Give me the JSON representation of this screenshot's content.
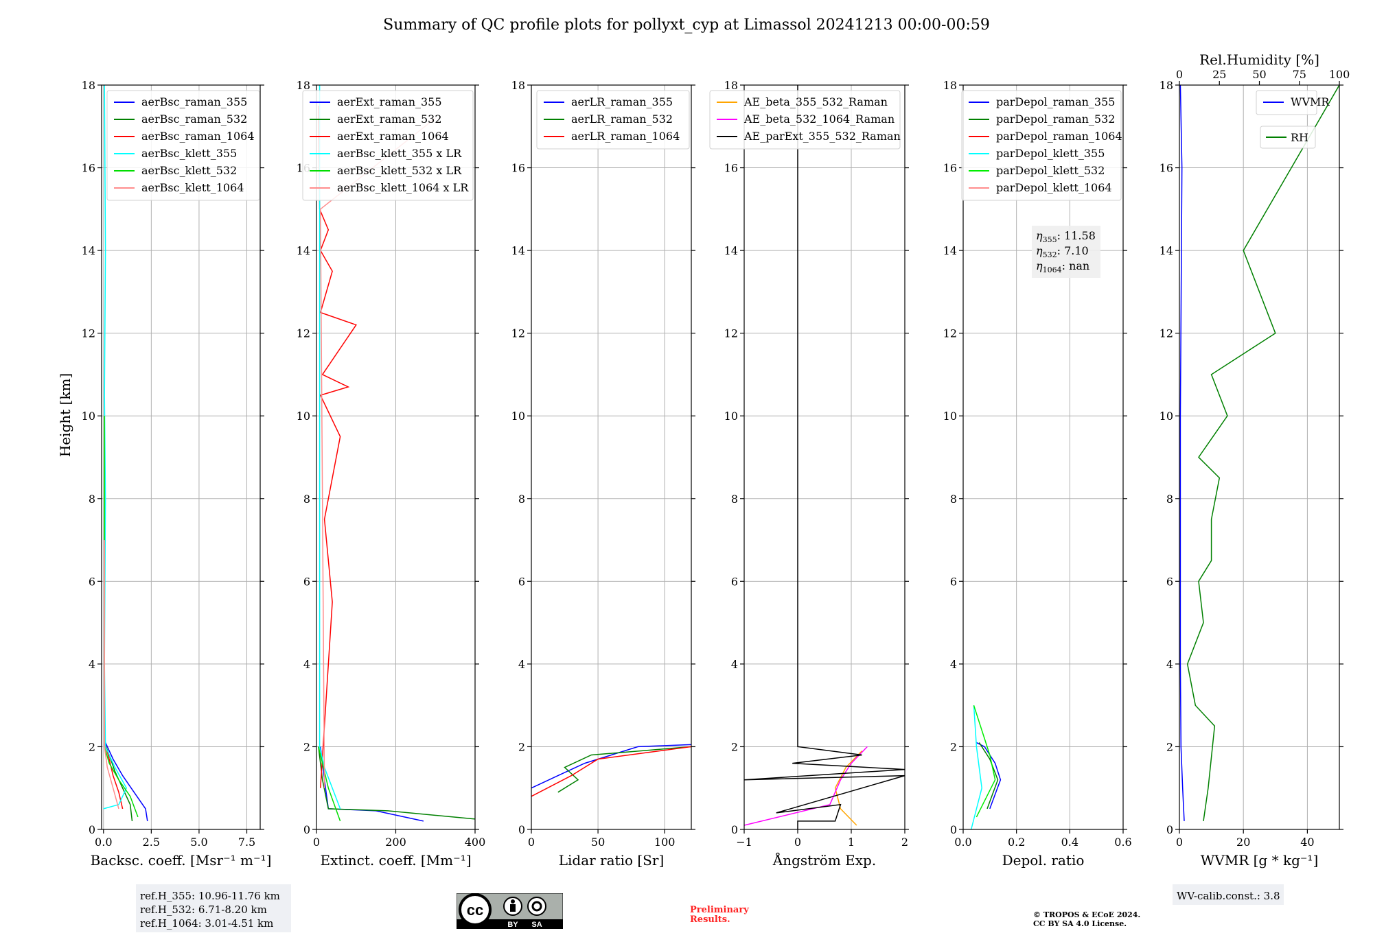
{
  "figure": {
    "title": "Summary of QC profile plots for pollyxt_cyp at Limassol 20241213 00:00-00:59",
    "ylabel": "Height [km]"
  },
  "chart_data": [
    {
      "type": "line",
      "id": "backscatter",
      "xlabel": "Backsc. coeff. [Msr⁻¹ m⁻¹]",
      "xlim": [
        -0.1,
        8.2
      ],
      "xticks": [
        "0.0",
        "2.5",
        "5.0",
        "7.5"
      ],
      "xtick_values": [
        0,
        2.5,
        5,
        7.5
      ],
      "ylim": [
        0,
        18
      ],
      "yticks": [
        "0",
        "2",
        "4",
        "6",
        "8",
        "10",
        "12",
        "14",
        "16",
        "18"
      ],
      "legend": [
        "aerBsc_raman_355",
        "aerBsc_raman_532",
        "aerBsc_raman_1064",
        "aerBsc_klett_355",
        "aerBsc_klett_532",
        "aerBsc_klett_1064"
      ],
      "series": [
        {
          "name": "aerBsc_raman_355",
          "color": "#0000ff",
          "x": [
            2.3,
            2.2,
            1.6,
            1.0,
            0.5,
            0.1
          ],
          "y": [
            0.2,
            0.5,
            0.9,
            1.3,
            1.7,
            2.1
          ]
        },
        {
          "name": "aerBsc_raman_532",
          "color": "#008000",
          "x": [
            1.5,
            1.4,
            1.0,
            0.6,
            0.3,
            0.05
          ],
          "y": [
            0.2,
            0.6,
            1.0,
            1.4,
            1.8,
            2.1
          ]
        },
        {
          "name": "aerBsc_raman_1064",
          "color": "#ff0000",
          "x": [
            1.0,
            0.8,
            0.5,
            0.3,
            0.1
          ],
          "y": [
            0.5,
            0.9,
            1.3,
            1.7,
            2.05
          ]
        },
        {
          "name": "aerBsc_klett_355",
          "color": "#00ffff",
          "x": [
            0.0,
            0.8,
            1.2,
            0.6,
            0.1,
            0.05,
            0.1,
            0.05,
            0.1,
            0.05
          ],
          "y": [
            0.5,
            0.6,
            1.0,
            1.5,
            2.0,
            4.0,
            8.0,
            10.5,
            14.0,
            18.0
          ]
        },
        {
          "name": "aerBsc_klett_532",
          "color": "#00dd00",
          "x": [
            1.8,
            1.4,
            0.8,
            0.3,
            0.05,
            0.05
          ],
          "y": [
            0.3,
            0.8,
            1.2,
            1.6,
            2.0,
            10.0
          ]
        },
        {
          "name": "aerBsc_klett_1064",
          "color": "#ff8c8c",
          "x": [
            0.8,
            0.5,
            0.2,
            0.05,
            0.05
          ],
          "y": [
            0.5,
            1.0,
            1.5,
            2.0,
            7.0
          ]
        }
      ],
      "annotation": [
        "ref.H_355: 10.96-11.76 km",
        "ref.H_532: 6.71-8.20 km",
        "ref.H_1064: 3.01-4.51 km"
      ]
    },
    {
      "type": "line",
      "id": "extinction",
      "xlabel": "Extinct. coeff. [Mm⁻¹]",
      "xlim": [
        0,
        400
      ],
      "xticks": [
        "0",
        "200",
        "400"
      ],
      "xtick_values": [
        0,
        200,
        400
      ],
      "ylim": [
        0,
        18
      ],
      "legend": [
        "aerExt_raman_355",
        "aerExt_raman_532",
        "aerExt_raman_1064",
        "aerBsc_klett_355 x LR",
        "aerBsc_klett_532 x LR",
        "aerBsc_klett_1064 x LR"
      ],
      "series": [
        {
          "name": "aerExt_raman_355",
          "color": "#0000ff",
          "x": [
            270,
            150,
            30,
            20,
            10
          ],
          "y": [
            0.2,
            0.45,
            0.5,
            1.2,
            2.0
          ]
        },
        {
          "name": "aerExt_raman_532",
          "color": "#008000",
          "x": [
            400,
            180,
            30,
            15,
            5
          ],
          "y": [
            0.25,
            0.45,
            0.5,
            1.2,
            2.0
          ]
        },
        {
          "name": "aerExt_raman_1064",
          "color": "#ff0000",
          "x": [
            10,
            40,
            20,
            60,
            10,
            80,
            15,
            100,
            10,
            40,
            10,
            30,
            8,
            5
          ],
          "y": [
            1.0,
            5.5,
            7.5,
            9.5,
            10.5,
            10.7,
            11.0,
            12.2,
            12.5,
            13.5,
            14.0,
            14.5,
            15.0,
            17.5
          ]
        },
        {
          "name": "aerBsc_klett_355 x LR",
          "color": "#00ffff",
          "x": [
            60,
            20,
            8,
            8
          ],
          "y": [
            0.5,
            1.5,
            2.0,
            18.0
          ]
        },
        {
          "name": "aerBsc_klett_532 x LR",
          "color": "#00dd00",
          "x": [
            60,
            30,
            5
          ],
          "y": [
            0.2,
            1.0,
            2.0
          ]
        },
        {
          "name": "aerBsc_klett_1064 x LR",
          "color": "#ff8c8c",
          "x": [
            20,
            10,
            300
          ],
          "y": [
            1.0,
            15.0,
            17.2
          ]
        }
      ]
    },
    {
      "type": "line",
      "id": "lidar_ratio",
      "xlabel": "Lidar ratio [Sr]",
      "xlim": [
        0,
        120
      ],
      "xticks": [
        "0",
        "50",
        "100"
      ],
      "xtick_values": [
        0,
        50,
        100
      ],
      "ylim": [
        0,
        18
      ],
      "legend": [
        "aerLR_raman_355",
        "aerLR_raman_532",
        "aerLR_raman_1064"
      ],
      "series": [
        {
          "name": "aerLR_raman_355",
          "color": "#0000ff",
          "x": [
            0,
            20,
            40,
            60,
            80,
            120
          ],
          "y": [
            1.0,
            1.3,
            1.6,
            1.8,
            2.0,
            2.05
          ]
        },
        {
          "name": "aerLR_raman_532",
          "color": "#008000",
          "x": [
            20,
            35,
            25,
            45,
            120
          ],
          "y": [
            0.9,
            1.2,
            1.5,
            1.8,
            2.0
          ]
        },
        {
          "name": "aerLR_raman_1064",
          "color": "#ff0000",
          "x": [
            0,
            30,
            50,
            120
          ],
          "y": [
            0.8,
            1.3,
            1.7,
            2.0
          ]
        }
      ]
    },
    {
      "type": "line",
      "id": "angstrom",
      "xlabel": "Ångström Exp.",
      "xlim": [
        -1,
        2
      ],
      "xticks": [
        "−1",
        "0",
        "1",
        "2"
      ],
      "xtick_values": [
        -1,
        0,
        1,
        2
      ],
      "ylim": [
        0,
        18
      ],
      "legend": [
        "AE_beta_355_532_Raman",
        "AE_beta_532_1064_Raman",
        "AE_parExt_355_532_Raman"
      ],
      "series": [
        {
          "name": "AE_beta_355_532_Raman",
          "color": "#ffa500",
          "x": [
            1.1,
            0.8,
            0.7,
            0.9,
            1.2
          ],
          "y": [
            0.1,
            0.5,
            1.0,
            1.5,
            1.9
          ]
        },
        {
          "name": "AE_beta_532_1064_Raman",
          "color": "#ff00ff",
          "x": [
            -1,
            0.6,
            0.8,
            1.0,
            1.3
          ],
          "y": [
            0.1,
            0.6,
            1.2,
            1.6,
            2.0
          ]
        },
        {
          "name": "AE_parExt_355_532_Raman",
          "color": "#000000",
          "x": [
            0,
            0,
            0.7,
            0.8,
            -0.4,
            2.0,
            -1.0,
            2.0,
            -0.1,
            1.2,
            0,
            0
          ],
          "y": [
            0,
            0.2,
            0.2,
            0.6,
            0.4,
            1.3,
            1.2,
            1.45,
            1.6,
            1.8,
            2.0,
            18.0
          ]
        }
      ]
    },
    {
      "type": "line",
      "id": "depol",
      "xlabel": "Depol. ratio",
      "xlim": [
        0,
        0.6
      ],
      "xticks": [
        "0.0",
        "0.2",
        "0.4",
        "0.6"
      ],
      "xtick_values": [
        0,
        0.2,
        0.4,
        0.6
      ],
      "ylim": [
        0,
        18
      ],
      "legend": [
        "parDepol_raman_355",
        "parDepol_raman_532",
        "parDepol_raman_1064",
        "parDepol_klett_355",
        "parDepol_klett_532",
        "parDepol_klett_1064"
      ],
      "series": [
        {
          "name": "parDepol_raman_355",
          "color": "#0000ff",
          "x": [
            0.1,
            0.14,
            0.12,
            0.08,
            0.05
          ],
          "y": [
            0.5,
            1.2,
            1.6,
            2.0,
            2.1
          ]
        },
        {
          "name": "parDepol_raman_532",
          "color": "#008000",
          "x": [
            0.09,
            0.13,
            0.1,
            0.06
          ],
          "y": [
            0.5,
            1.2,
            1.7,
            2.1
          ]
        },
        {
          "name": "parDepol_klett_355",
          "color": "#00ffff",
          "x": [
            0.03,
            0.07,
            0.05,
            0.04
          ],
          "y": [
            0.0,
            1.0,
            2.0,
            3.0
          ]
        },
        {
          "name": "parDepol_klett_532",
          "color": "#00ee00",
          "x": [
            0.05,
            0.12,
            0.1,
            0.04
          ],
          "y": [
            0.3,
            1.2,
            1.8,
            3.0
          ]
        }
      ],
      "eta": {
        "eta355": "11.58",
        "eta532": "7.10",
        "eta1064": "nan"
      }
    },
    {
      "type": "line",
      "id": "wvmr",
      "xlabel": "WVMR [g * kg⁻¹]",
      "xlim": [
        0,
        50
      ],
      "xticks": [
        "0",
        "20",
        "40"
      ],
      "xtick_values": [
        0,
        20,
        40
      ],
      "top_label": "Rel.Humidity [%]",
      "top_xlim": [
        0,
        100
      ],
      "top_xticks": [
        "0",
        "25",
        "50",
        "75",
        "100"
      ],
      "top_xtick_values": [
        0,
        25,
        50,
        75,
        100
      ],
      "ylim": [
        0,
        18
      ],
      "legend": [
        "WVMR"
      ],
      "legend2": [
        "RH"
      ],
      "series": [
        {
          "name": "WVMR",
          "color": "#0000ff",
          "x": [
            1.5,
            1.0,
            0.5,
            0.3,
            0.3,
            0.8,
            0.3
          ],
          "y": [
            0.2,
            1.0,
            2.0,
            4.0,
            10.0,
            16.0,
            18.0
          ]
        },
        {
          "name": "RH",
          "color": "#008000",
          "axis": "top",
          "x": [
            15,
            18,
            22,
            10,
            5,
            15,
            12,
            20,
            20,
            25,
            12,
            30,
            20,
            60,
            40,
            100
          ],
          "y": [
            0.2,
            1.0,
            2.5,
            3.0,
            4.0,
            5.0,
            6.0,
            6.5,
            7.5,
            8.5,
            9.0,
            10.0,
            11.0,
            12.0,
            14.0,
            18.0
          ]
        }
      ],
      "annotation": [
        "WV-calib.const.: 3.8"
      ]
    }
  ],
  "footer": {
    "cc_text": "cc",
    "cc_by": "BY",
    "cc_sa": "SA",
    "preliminary_line1": "Preliminary",
    "preliminary_line2": "Results.",
    "copyright_line1": "© TROPOS & ECoE 2024.",
    "copyright_line2": "CC BY SA 4.0 License."
  }
}
